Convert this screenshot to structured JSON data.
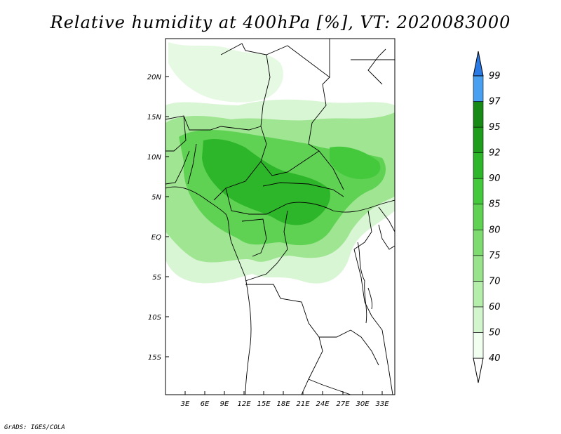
{
  "title": "Relative humidity at 400hPa [%], VT: 2020083000",
  "footer": "GrADS: IGES/COLA",
  "map": {
    "lat_ticks": [
      "20N",
      "15N",
      "10N",
      "5N",
      "EQ",
      "5S",
      "10S",
      "15S"
    ],
    "lon_ticks": [
      "3E",
      "6E",
      "9E",
      "12E",
      "15E",
      "18E",
      "21E",
      "24E",
      "27E",
      "30E",
      "33E"
    ],
    "lon_range": [
      0,
      35
    ],
    "lat_range": [
      -20,
      24
    ]
  },
  "colorbar": {
    "levels": [
      "40",
      "50",
      "60",
      "70",
      "75",
      "80",
      "85",
      "90",
      "92",
      "95",
      "97",
      "99"
    ],
    "colors": [
      "#f0fff0",
      "#d2f5cd",
      "#b5edab",
      "#98e38c",
      "#7ddb70",
      "#5fd254",
      "#45c93c",
      "#2eb62a",
      "#1e9d1c",
      "#178a16",
      "#4aa0f0",
      "#2a7ae6",
      "#1652d0"
    ]
  }
}
